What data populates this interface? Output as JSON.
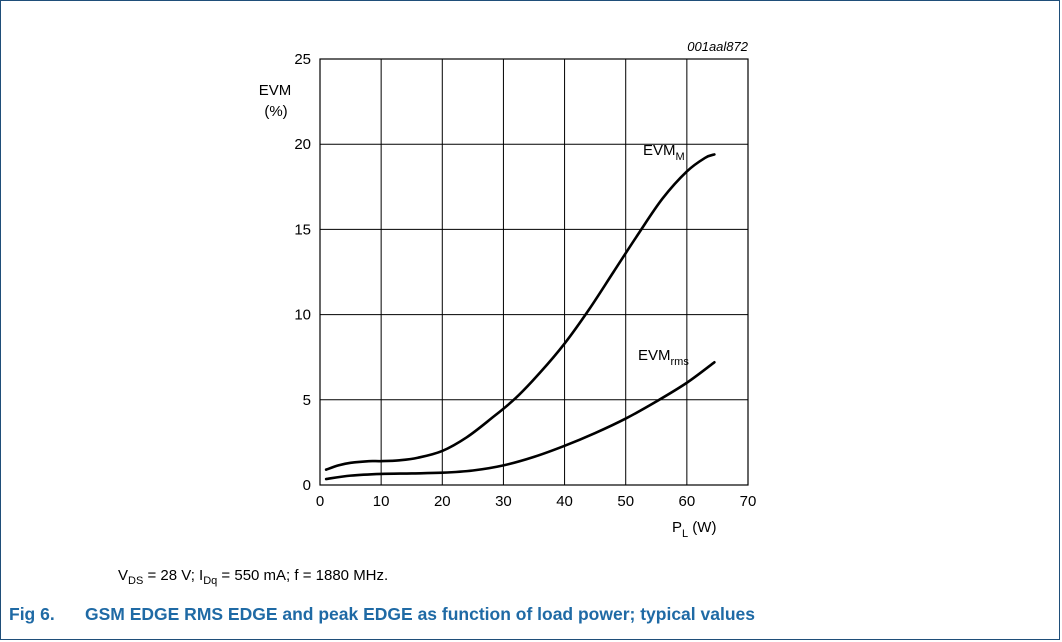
{
  "chart_data": {
    "type": "line",
    "figure_id": "001aal872",
    "ylabel_line1": "EVM",
    "ylabel_line2": "(%)",
    "xlabel_main": "P",
    "xlabel_sub": "L",
    "xlabel_unit": " (W)",
    "xlim": [
      0,
      70
    ],
    "ylim": [
      0,
      25
    ],
    "xticks": [
      0,
      10,
      20,
      30,
      40,
      50,
      60,
      70
    ],
    "yticks": [
      0,
      5,
      10,
      15,
      20,
      25
    ],
    "grid": true,
    "series": [
      {
        "name": "EVMM",
        "label_main": "EVM",
        "label_sub": "M",
        "x": [
          1,
          3,
          5,
          8,
          10,
          13,
          16,
          20,
          24,
          28,
          32,
          36,
          40,
          44,
          48,
          52,
          56,
          60,
          63,
          64.5
        ],
        "y": [
          0.9,
          1.15,
          1.3,
          1.4,
          1.4,
          1.45,
          1.6,
          2.0,
          2.8,
          3.9,
          5.1,
          6.6,
          8.3,
          10.3,
          12.5,
          14.7,
          16.8,
          18.4,
          19.2,
          19.4
        ]
      },
      {
        "name": "EVMrms",
        "label_main": "EVM",
        "label_sub": "rms",
        "x": [
          1,
          5,
          10,
          15,
          20,
          25,
          30,
          35,
          40,
          45,
          50,
          55,
          60,
          64.5
        ],
        "y": [
          0.35,
          0.55,
          0.65,
          0.68,
          0.72,
          0.85,
          1.15,
          1.65,
          2.3,
          3.05,
          3.9,
          4.9,
          6.0,
          7.2
        ]
      }
    ]
  },
  "conditions": {
    "v": "V",
    "v_sub": "DS",
    "v_val": " = 28 V; ",
    "i": "I",
    "i_sub": "Dq",
    "i_val": " = 550 mA; f = 1880 MHz."
  },
  "caption": {
    "number": "Fig 6.",
    "title": "GSM EDGE RMS EDGE and peak EDGE as function of load power; typical values"
  }
}
